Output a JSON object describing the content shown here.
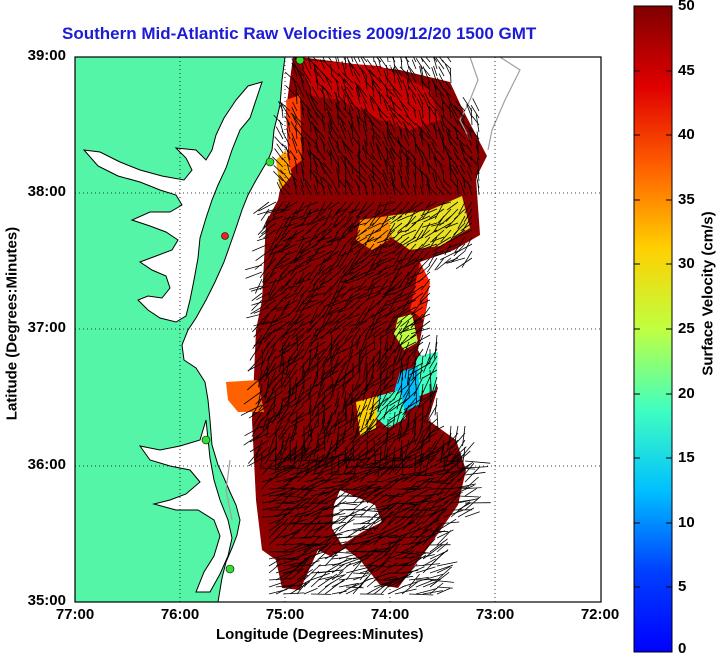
{
  "title": "Southern Mid-Atlantic Raw Velocities 2009/12/20 1500 GMT",
  "axes": {
    "xlabel": "Longitude (Degrees:Minutes)",
    "ylabel": "Latitude (Degrees:Minutes)",
    "xticks": [
      "77:00",
      "76:00",
      "75:00",
      "74:00",
      "73:00",
      "72:00"
    ],
    "yticks": [
      "39:00",
      "38:00",
      "37:00",
      "36:00",
      "35:00"
    ],
    "xlim": [
      -77,
      -72
    ],
    "ylim": [
      35,
      39
    ],
    "grid": true,
    "grid_style": "dotted"
  },
  "colorbar": {
    "label": "Surface Velocity (cm/s)",
    "ticks": [
      "50",
      "45",
      "40",
      "35",
      "30",
      "25",
      "20",
      "15",
      "10",
      "5",
      "0"
    ],
    "range": [
      0,
      50
    ],
    "colormap": "jet"
  },
  "colors": {
    "title": "#1c1cd6",
    "land": "#55f5a8",
    "coastline": "#000000",
    "bathymetry": "#a0a0a0",
    "vector": "#000000",
    "station_green": "#33dd33",
    "station_red": "#ee2222",
    "dominant_velocity": "#8b0000"
  },
  "map": {
    "type": "surface current velocity map",
    "projection": "lon/lat",
    "region": "Southern Mid-Atlantic Bight",
    "stations": [
      {
        "color": "green",
        "lon": -74.9,
        "lat": 39.0
      },
      {
        "color": "green",
        "lon": -75.1,
        "lat": 38.22
      },
      {
        "color": "red",
        "lon": -75.45,
        "lat": 37.7
      },
      {
        "color": "green",
        "lon": -75.73,
        "lat": 36.18
      },
      {
        "color": "green",
        "lon": -75.5,
        "lat": 35.25
      }
    ]
  }
}
